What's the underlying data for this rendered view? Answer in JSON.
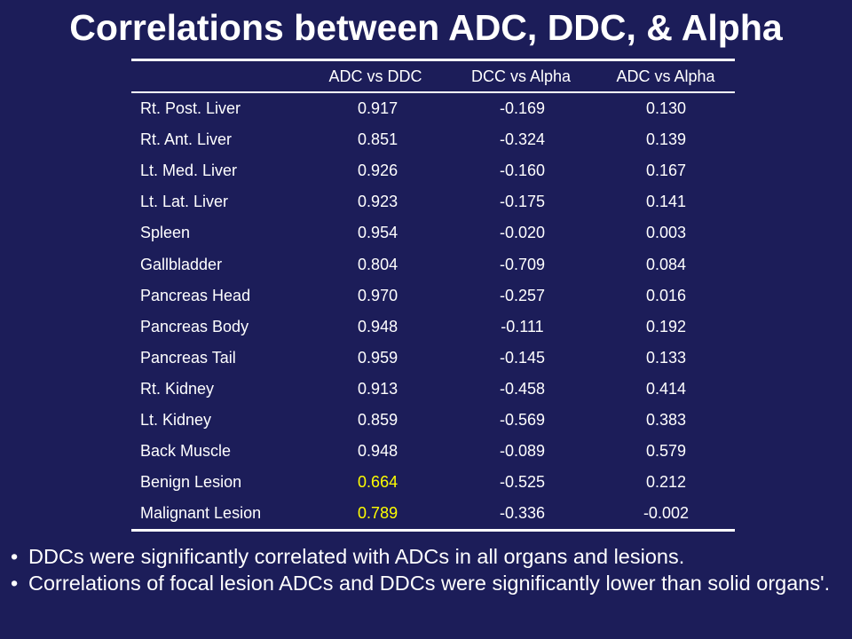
{
  "title": "Correlations between ADC, DDC, & Alpha",
  "table": {
    "headers": [
      "",
      "ADC vs DDC",
      "DCC vs Alpha",
      "ADC vs Alpha"
    ],
    "rows": [
      {
        "organ": "Rt. Post. Liver",
        "adc_ddc": "0.917",
        "dcc_alpha": "-0.169",
        "adc_alpha": "0.130"
      },
      {
        "organ": "Rt. Ant. Liver",
        "adc_ddc": "0.851",
        "dcc_alpha": "-0.324",
        "adc_alpha": "0.139"
      },
      {
        "organ": "Lt. Med. Liver",
        "adc_ddc": "0.926",
        "dcc_alpha": "-0.160",
        "adc_alpha": "0.167"
      },
      {
        "organ": "Lt. Lat. Liver",
        "adc_ddc": "0.923",
        "dcc_alpha": "-0.175",
        "adc_alpha": "0.141"
      },
      {
        "organ": "Spleen",
        "adc_ddc": "0.954",
        "dcc_alpha": "-0.020",
        "adc_alpha": "0.003"
      },
      {
        "organ": "Gallbladder",
        "adc_ddc": "0.804",
        "dcc_alpha": "-0.709",
        "adc_alpha": "0.084"
      },
      {
        "organ": "Pancreas Head",
        "adc_ddc": "0.970",
        "dcc_alpha": "-0.257",
        "adc_alpha": "0.016"
      },
      {
        "organ": "Pancreas Body",
        "adc_ddc": "0.948",
        "dcc_alpha": "-0.111",
        "adc_alpha": "0.192"
      },
      {
        "organ": "Pancreas Tail",
        "adc_ddc": "0.959",
        "dcc_alpha": "-0.145",
        "adc_alpha": "0.133"
      },
      {
        "organ": "Rt. Kidney",
        "adc_ddc": "0.913",
        "dcc_alpha": "-0.458",
        "adc_alpha": "0.414"
      },
      {
        "organ": "Lt. Kidney",
        "adc_ddc": "0.859",
        "dcc_alpha": "-0.569",
        "adc_alpha": "0.383"
      },
      {
        "organ": "Back Muscle",
        "adc_ddc": "0.948",
        "dcc_alpha": "-0.089",
        "adc_alpha": "0.579"
      },
      {
        "organ": "Benign Lesion",
        "adc_ddc": "0.664",
        "dcc_alpha": "-0.525",
        "adc_alpha": "0.212"
      },
      {
        "organ": "Malignant Lesion",
        "adc_ddc": "0.789",
        "dcc_alpha": "-0.336",
        "adc_alpha": "-0.002"
      }
    ]
  },
  "bullets": [
    {
      "marker": "•",
      "text": "DDCs were significantly correlated with ADCs in all organs and lesions."
    },
    {
      "marker": "•",
      "text": "Correlations of focal lesion ADCs and DDCs were significantly lower than solid organs'."
    }
  ],
  "colors": {
    "background": "#1c1d59",
    "text": "#ffffff",
    "highlight": "#ffff00"
  }
}
